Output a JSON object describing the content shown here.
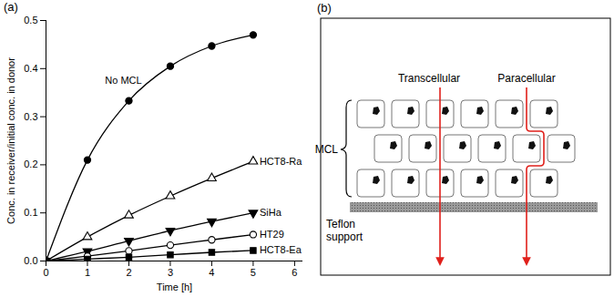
{
  "chart_data": {
    "type": "line",
    "panel_label": "(a)",
    "x_label": "Time [h]",
    "y_label": "Conc. in receiver/initial conc. in donor",
    "xlim": [
      0,
      6.2
    ],
    "xticks": [
      0,
      1,
      2,
      3,
      4,
      5,
      6
    ],
    "ylim": [
      0,
      0.5
    ],
    "yticks": [
      {
        "value": 0,
        "label": "0.0"
      },
      {
        "value": 0.1,
        "label": "0.1"
      },
      {
        "value": 0.2,
        "label": "0.2"
      },
      {
        "value": 0.3,
        "label": "0.3"
      },
      {
        "value": 0.4,
        "label": "0.4"
      },
      {
        "value": 0.5,
        "label": "0.5"
      }
    ],
    "grid": false,
    "x": [
      0,
      1,
      2,
      3,
      4,
      5
    ],
    "series": [
      {
        "name": "No MCL",
        "color": "#000000",
        "marker": "circle",
        "line_style": "solid",
        "values": [
          0,
          0.21,
          0.333,
          0.405,
          0.447,
          0.47
        ]
      },
      {
        "name": "HCT8-Ra",
        "color": "#000000",
        "marker": "triangle-open",
        "line_style": "solid",
        "values": [
          0,
          0.05,
          0.095,
          0.135,
          0.172,
          0.207
        ]
      },
      {
        "name": "SiHa",
        "color": "#000000",
        "marker": "triangle-down",
        "line_style": "solid",
        "values": [
          0,
          0.02,
          0.042,
          0.063,
          0.082,
          0.1
        ]
      },
      {
        "name": "HT29",
        "color": "#000000",
        "marker": "circle-open",
        "line_style": "solid",
        "values": [
          0,
          0.01,
          0.021,
          0.033,
          0.044,
          0.055
        ]
      },
      {
        "name": "HCT8-Ea",
        "color": "#000000",
        "marker": "square",
        "line_style": "solid",
        "values": [
          0,
          0.004,
          0.008,
          0.013,
          0.018,
          0.022
        ]
      }
    ]
  },
  "diagram": {
    "panel_label": "(b)",
    "group_label": "MCL",
    "support_label": "Teflon support",
    "pathways": [
      "Transcellular",
      "Paracellular"
    ]
  }
}
